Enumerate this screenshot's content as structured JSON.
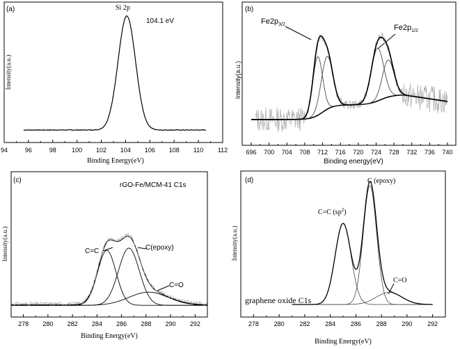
{
  "chart_data": [
    {
      "panel_label": "(a)",
      "type": "line",
      "title": "",
      "annotations": {
        "peak_name": "Si 2p",
        "peak_energy": "104.1 eV"
      },
      "xlabel": "Binding Energy(eV)",
      "ylabel": "Intensity(a.u.)",
      "xlim": [
        94,
        112
      ],
      "ylim": [
        0,
        1.05
      ],
      "xticks": [
        94,
        96,
        98,
        100,
        102,
        104,
        106,
        108,
        110,
        112
      ],
      "series": [
        {
          "name": "Si 2p",
          "peaks": [
            {
              "center": 104.1,
              "amplitude": 1.0,
              "sigma": 0.72
            }
          ],
          "baseline": 0.0,
          "x_range": [
            95.6,
            110.6
          ]
        }
      ]
    },
    {
      "panel_label": "(b)",
      "type": "line",
      "title": "",
      "annotations": {
        "label_1": "Fe2p",
        "label_1_sub": "3/2",
        "label_2": "Fe2p",
        "label_2_sub": "1/2"
      },
      "xlabel": "Binding energy(eV)",
      "ylabel": "Intensity(a.u.)",
      "xlim": [
        696,
        740
      ],
      "ylim": [
        0,
        1
      ],
      "xticks": [
        696,
        700,
        704,
        708,
        712,
        716,
        720,
        724,
        728,
        732,
        736,
        740
      ],
      "series": [
        {
          "name": "raw data (noisy)",
          "color": "#b0b0b0"
        },
        {
          "name": "Fe2p3/2 component A",
          "peaks": [
            {
              "center": 710.9,
              "amplitude": 0.52,
              "sigma": 1.1
            }
          ]
        },
        {
          "name": "Fe2p3/2 component B",
          "peaks": [
            {
              "center": 713.0,
              "amplitude": 0.47,
              "sigma": 1.3
            }
          ]
        },
        {
          "name": "Fe2p1/2 component A",
          "peaks": [
            {
              "center": 724.3,
              "amplitude": 0.47,
              "sigma": 1.4
            }
          ]
        },
        {
          "name": "Fe2p1/2 component B",
          "peaks": [
            {
              "center": 726.7,
              "amplitude": 0.33,
              "sigma": 1.3
            }
          ]
        },
        {
          "name": "Shirley background"
        },
        {
          "name": "envelope fit"
        }
      ]
    },
    {
      "panel_label": "(c)",
      "type": "line",
      "title": "rGO-Fe/MCM-41 C1s",
      "xlabel": "Binding Energy(eV)",
      "ylabel": "Intensity(a.u.)",
      "xlim": [
        277,
        293
      ],
      "ylim": [
        0,
        1
      ],
      "xticks": [
        278,
        280,
        282,
        284,
        286,
        288,
        290,
        292
      ],
      "peak_labels": [
        "C=C",
        "C(epoxy)",
        "C=O"
      ],
      "series": [
        {
          "name": "C=C",
          "peaks": [
            {
              "center": 284.8,
              "amplitude": 0.5,
              "sigma": 0.75
            }
          ]
        },
        {
          "name": "C(epoxy)",
          "peaks": [
            {
              "center": 286.6,
              "amplitude": 0.52,
              "sigma": 0.85
            }
          ]
        },
        {
          "name": "C=O",
          "peaks": [
            {
              "center": 288.2,
              "amplitude": 0.12,
              "sigma": 1.6
            }
          ]
        },
        {
          "name": "envelope fit"
        },
        {
          "name": "raw data (noisy)",
          "color": "#999999"
        }
      ]
    },
    {
      "panel_label": "(d)",
      "type": "line",
      "title": "graphene oxide C1s",
      "xlabel": "Binding Energy(eV)",
      "ylabel": "Intensity(a.u.)",
      "xlim": [
        277,
        293
      ],
      "ylim": [
        0,
        1
      ],
      "xticks": [
        278,
        280,
        282,
        284,
        286,
        288,
        290,
        292
      ],
      "peak_labels": [
        "C=C (sp",
        "2",
        ")",
        "C (epoxy)",
        "C=O"
      ],
      "series": [
        {
          "name": "C=C (sp2)",
          "peaks": [
            {
              "center": 285.0,
              "amplitude": 0.6,
              "sigma": 0.62
            }
          ]
        },
        {
          "name": "C (epoxy)",
          "peaks": [
            {
              "center": 287.1,
              "amplitude": 0.88,
              "sigma": 0.52
            }
          ]
        },
        {
          "name": "C=O",
          "peaks": [
            {
              "center": 288.6,
              "amplitude": 0.09,
              "sigma": 1.0
            }
          ]
        },
        {
          "name": "envelope fit"
        }
      ]
    }
  ]
}
